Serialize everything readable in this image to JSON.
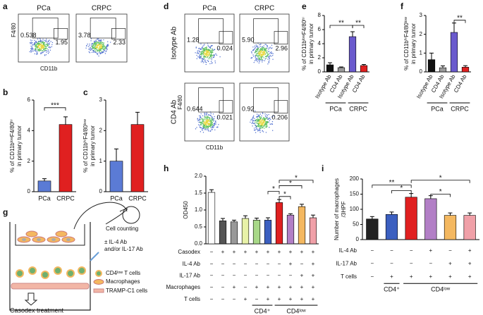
{
  "chart_data": [
    {
      "type": "flow",
      "panel": "a",
      "columns": [
        "PCa",
        "CRPC"
      ],
      "y_label": "F4/80",
      "x_label": "CD11b",
      "plots": [
        {
          "values": [
            0.538,
            1.95
          ]
        },
        {
          "values": [
            3.78,
            2.33
          ]
        }
      ]
    },
    {
      "type": "bar",
      "panel": "b",
      "categories": [
        "PCa",
        "CRPC"
      ],
      "values": [
        0.7,
        4.4
      ],
      "errors": [
        0.15,
        0.5
      ],
      "colors": [
        "#5b7bd5",
        "#e02020"
      ],
      "ylim": [
        0,
        6
      ],
      "yticks": [
        0,
        2,
        4,
        6
      ],
      "y_label": [
        "% of CD11bˡᵒʷF4/80ʰⁱ",
        "in primary tumor"
      ],
      "annotations": [
        "***"
      ]
    },
    {
      "type": "bar",
      "panel": "c",
      "categories": [
        "PCa",
        "CRPC"
      ],
      "values": [
        1.0,
        2.2
      ],
      "errors": [
        0.4,
        0.4
      ],
      "colors": [
        "#5b7bd5",
        "#e02020"
      ],
      "ylim": [
        0,
        3
      ],
      "yticks": [
        0,
        1,
        2,
        3
      ],
      "y_label": [
        "% of CD11bʰⁱF4/80ˡᵒʷ",
        "in primary tumor"
      ]
    },
    {
      "type": "flow",
      "panel": "d",
      "columns": [
        "PCa",
        "CRPC"
      ],
      "rows": [
        "Isotype Ab",
        "CD4 Ab"
      ],
      "y_label": "F4/80",
      "x_label": "CD11b",
      "plots": [
        {
          "values": [
            1.28,
            0.024
          ]
        },
        {
          "values": [
            5.9,
            2.96
          ],
          "value_labels": [
            "5.90",
            "2.96"
          ]
        },
        {
          "values": [
            0.644,
            0.021
          ]
        },
        {
          "values": [
            0.92,
            0.206
          ]
        }
      ]
    },
    {
      "type": "bar",
      "panel": "e",
      "categories": [
        "Isotype Ab",
        "CD4 Ab",
        "Isotype Ab",
        "CD4 Ab"
      ],
      "groups": [
        "PCa",
        "CRPC"
      ],
      "values": [
        1.0,
        0.6,
        5.0,
        0.9
      ],
      "errors": [
        0.3,
        0.1,
        0.7,
        0.15
      ],
      "colors": [
        "#111111",
        "#999999",
        "#6a5acd",
        "#e02020"
      ],
      "ylim": [
        0,
        8
      ],
      "yticks": [
        0,
        2,
        4,
        6,
        8
      ],
      "y_label": [
        "% of CD11bˡᵒʷF4/80ʰⁱ",
        "in primary tumor"
      ],
      "annotations": [
        "**",
        "**"
      ]
    },
    {
      "type": "bar",
      "panel": "f",
      "categories": [
        "Isotype Ab",
        "CD4 Ab",
        "Isotype Ab",
        "CD4 Ab"
      ],
      "groups": [
        "PCa",
        "CRPC"
      ],
      "values": [
        0.65,
        0.22,
        2.1,
        0.25
      ],
      "errors": [
        0.35,
        0.1,
        0.5,
        0.08
      ],
      "colors": [
        "#111111",
        "#999999",
        "#6a5acd",
        "#e02020"
      ],
      "ylim": [
        0,
        3
      ],
      "yticks": [
        0,
        1,
        2,
        3
      ],
      "y_label": [
        "% of CD11bʰⁱF4/80ˡᵒʷ",
        "in primary tumor"
      ],
      "annotations": [
        "**"
      ]
    },
    {
      "type": "bar",
      "panel": "h",
      "values": [
        1.52,
        0.68,
        0.65,
        0.75,
        0.7,
        0.7,
        1.22,
        0.85,
        1.1,
        0.77
      ],
      "errors": [
        0.08,
        0.07,
        0.05,
        0.08,
        0.06,
        0.07,
        0.09,
        0.04,
        0.07,
        0.08
      ],
      "colors": [
        "#ffffff",
        "#555555",
        "#999999",
        "#e8f2a8",
        "#a8d888",
        "#3b5fc0",
        "#e02020",
        "#b27fc6",
        "#f4b860",
        "#f0a0a8"
      ],
      "ylim": [
        0,
        2
      ],
      "yticks": [
        {
          "value": 0,
          "label": "0.0"
        },
        {
          "value": 0.5,
          "label": "0.5"
        },
        {
          "value": 1,
          "label": "1.0"
        },
        {
          "value": 1.5,
          "label": "1.5"
        },
        {
          "value": 2,
          "label": "2.0"
        }
      ],
      "y_label": [
        "OD450"
      ],
      "annotations": [
        "*",
        "*",
        "*",
        "*"
      ],
      "table": [
        {
          "label": "Casodex",
          "cells": [
            "−",
            "+",
            "+",
            "+",
            "+",
            "+",
            "+",
            "+",
            "+",
            "+"
          ]
        },
        {
          "label": "IL-4 Ab",
          "cells": [
            "−",
            "−",
            "−",
            "−",
            "−",
            "−",
            "−",
            "+",
            "−",
            "+"
          ]
        },
        {
          "label": "IL-17 Ab",
          "cells": [
            "−",
            "−",
            "−",
            "−",
            "−",
            "−",
            "−",
            "−",
            "+",
            "+"
          ]
        },
        {
          "label": "Macrophages",
          "cells": [
            "−",
            "−",
            "+",
            "−",
            "+",
            "+",
            "+",
            "+",
            "+",
            "+"
          ]
        },
        {
          "label": "T cells",
          "cells": [
            "−",
            "−",
            "−",
            "+",
            "−",
            "+",
            "+",
            "+",
            "+",
            "+"
          ]
        }
      ],
      "groups": [
        "CD4⁺",
        "CD4ˡᵒʷ"
      ]
    },
    {
      "type": "bar",
      "panel": "i",
      "values": [
        68,
        83,
        140,
        135,
        80,
        80
      ],
      "errors": [
        8,
        8,
        12,
        10,
        8,
        8
      ],
      "colors": [
        "#222222",
        "#3b5fc0",
        "#e02020",
        "#b27fc6",
        "#f4b860",
        "#f0a0a8"
      ],
      "ylim": [
        0,
        200
      ],
      "yticks": [
        0,
        50,
        100,
        150,
        200
      ],
      "y_label": [
        "Number of macrophages",
        "/3HPF"
      ],
      "annotations": [
        "**",
        "*",
        "*",
        "*"
      ],
      "table": [
        {
          "label": "IL-4 Ab",
          "cells": [
            "−",
            "−",
            "−",
            "+",
            "−",
            "+"
          ]
        },
        {
          "label": "IL-17 Ab",
          "cells": [
            "−",
            "−",
            "−",
            "−",
            "+",
            "+"
          ]
        },
        {
          "label": "T cells",
          "cells": [
            "−",
            "+",
            "+",
            "+",
            "+",
            "+"
          ]
        }
      ],
      "groups": [
        "CD4⁺",
        "CD4ˡᵒʷ"
      ]
    }
  ],
  "diagram": {
    "panel": "g",
    "labels": [
      "Cell counting",
      "± IL-4 Ab",
      "and/or IL-17 Ab",
      "CD4ˡᵒʷ T cells",
      "Macrophages",
      "TRAMP-C1 cells",
      "Casodex treatment"
    ]
  }
}
